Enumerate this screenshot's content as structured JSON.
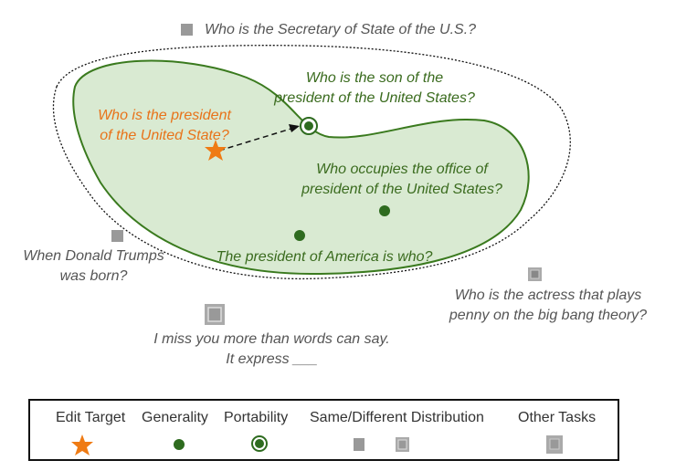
{
  "colors": {
    "edit_target": "#ef7b14",
    "generality": "#2e6b1f",
    "region_fill": "#d9ead2",
    "region_stroke": "#3a7a1e",
    "distribution": "#9a9a9a"
  },
  "labels": {
    "secretary": "Who is the Secretary of State of the U.S.?",
    "son": [
      "Who is the son of the",
      "president of the United States?"
    ],
    "edit": [
      "Who is the president",
      "of the United State?"
    ],
    "occupies": [
      "Who occupies the office of",
      "president of the United States?"
    ],
    "america": "The president of America is who?",
    "trump": [
      "When Donald Trumps",
      "was born?"
    ],
    "actress": [
      "Who is the actress that plays",
      "penny on the big bang theory?"
    ],
    "miss": [
      "I miss you more than words can say.",
      "It express ___"
    ]
  },
  "legend": {
    "edit_target": "Edit Target",
    "generality": "Generality",
    "portability": "Portability",
    "distribution": "Same/Different Distribution",
    "other_tasks": "Other Tasks"
  }
}
